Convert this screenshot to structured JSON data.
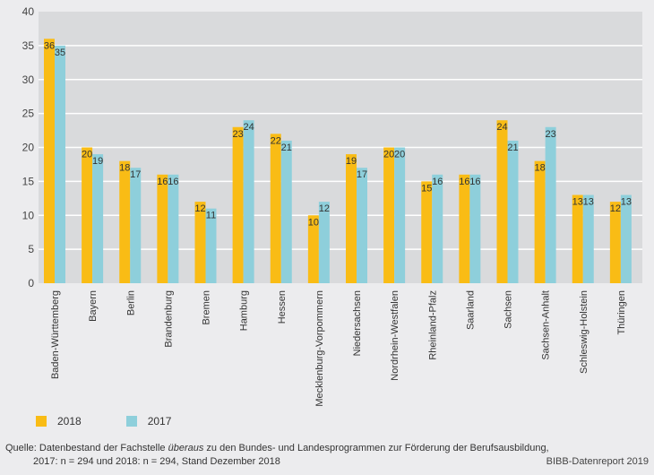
{
  "chart_data": {
    "type": "bar",
    "title": "",
    "xlabel": "",
    "ylabel": "",
    "ylim": [
      0,
      40
    ],
    "yticks": [
      0,
      5,
      10,
      15,
      20,
      25,
      30,
      35,
      40
    ],
    "grid": true,
    "legend_position": "bottom-left",
    "categories": [
      "Baden-Württemberg",
      "Bayern",
      "Berlin",
      "Brandenburg",
      "Bremen",
      "Hamburg",
      "Hessen",
      "Mecklenburg-Vorpommern",
      "Niedersachsen",
      "Nordrhein-Westfalen",
      "Rheinland-Pfalz",
      "Saarland",
      "Sachsen",
      "Sachsen-Anhalt",
      "Schleswig-Holstein",
      "Thüringen"
    ],
    "series": [
      {
        "name": "2018",
        "color": "#f9bc15",
        "values": [
          36,
          20,
          18,
          16,
          12,
          23,
          22,
          10,
          19,
          20,
          15,
          16,
          24,
          18,
          13,
          12
        ]
      },
      {
        "name": "2017",
        "color": "#8ecfdb",
        "values": [
          35,
          19,
          17,
          16,
          11,
          24,
          21,
          12,
          17,
          20,
          16,
          16,
          21,
          23,
          13,
          13
        ]
      }
    ]
  },
  "legend": [
    {
      "label": "2018",
      "color": "#f9bc15"
    },
    {
      "label": "2017",
      "color": "#8ecfdb"
    }
  ],
  "footer": {
    "source_prefix": "Quelle: Datenbestand der Fachstelle ",
    "source_emphasis": "überaus",
    "source_suffix": " zu den Bundes- und Landesprogrammen zur Förderung der Berufsausbildung,",
    "source_line2": "2017: n = 294 und 2018: n = 294, Stand Dezember 2018",
    "credit": "BIBB-Datenreport 2019"
  },
  "colors": {
    "plot_background": "#d9dadc",
    "page_background": "#ececee",
    "gridline": "#ffffff"
  }
}
